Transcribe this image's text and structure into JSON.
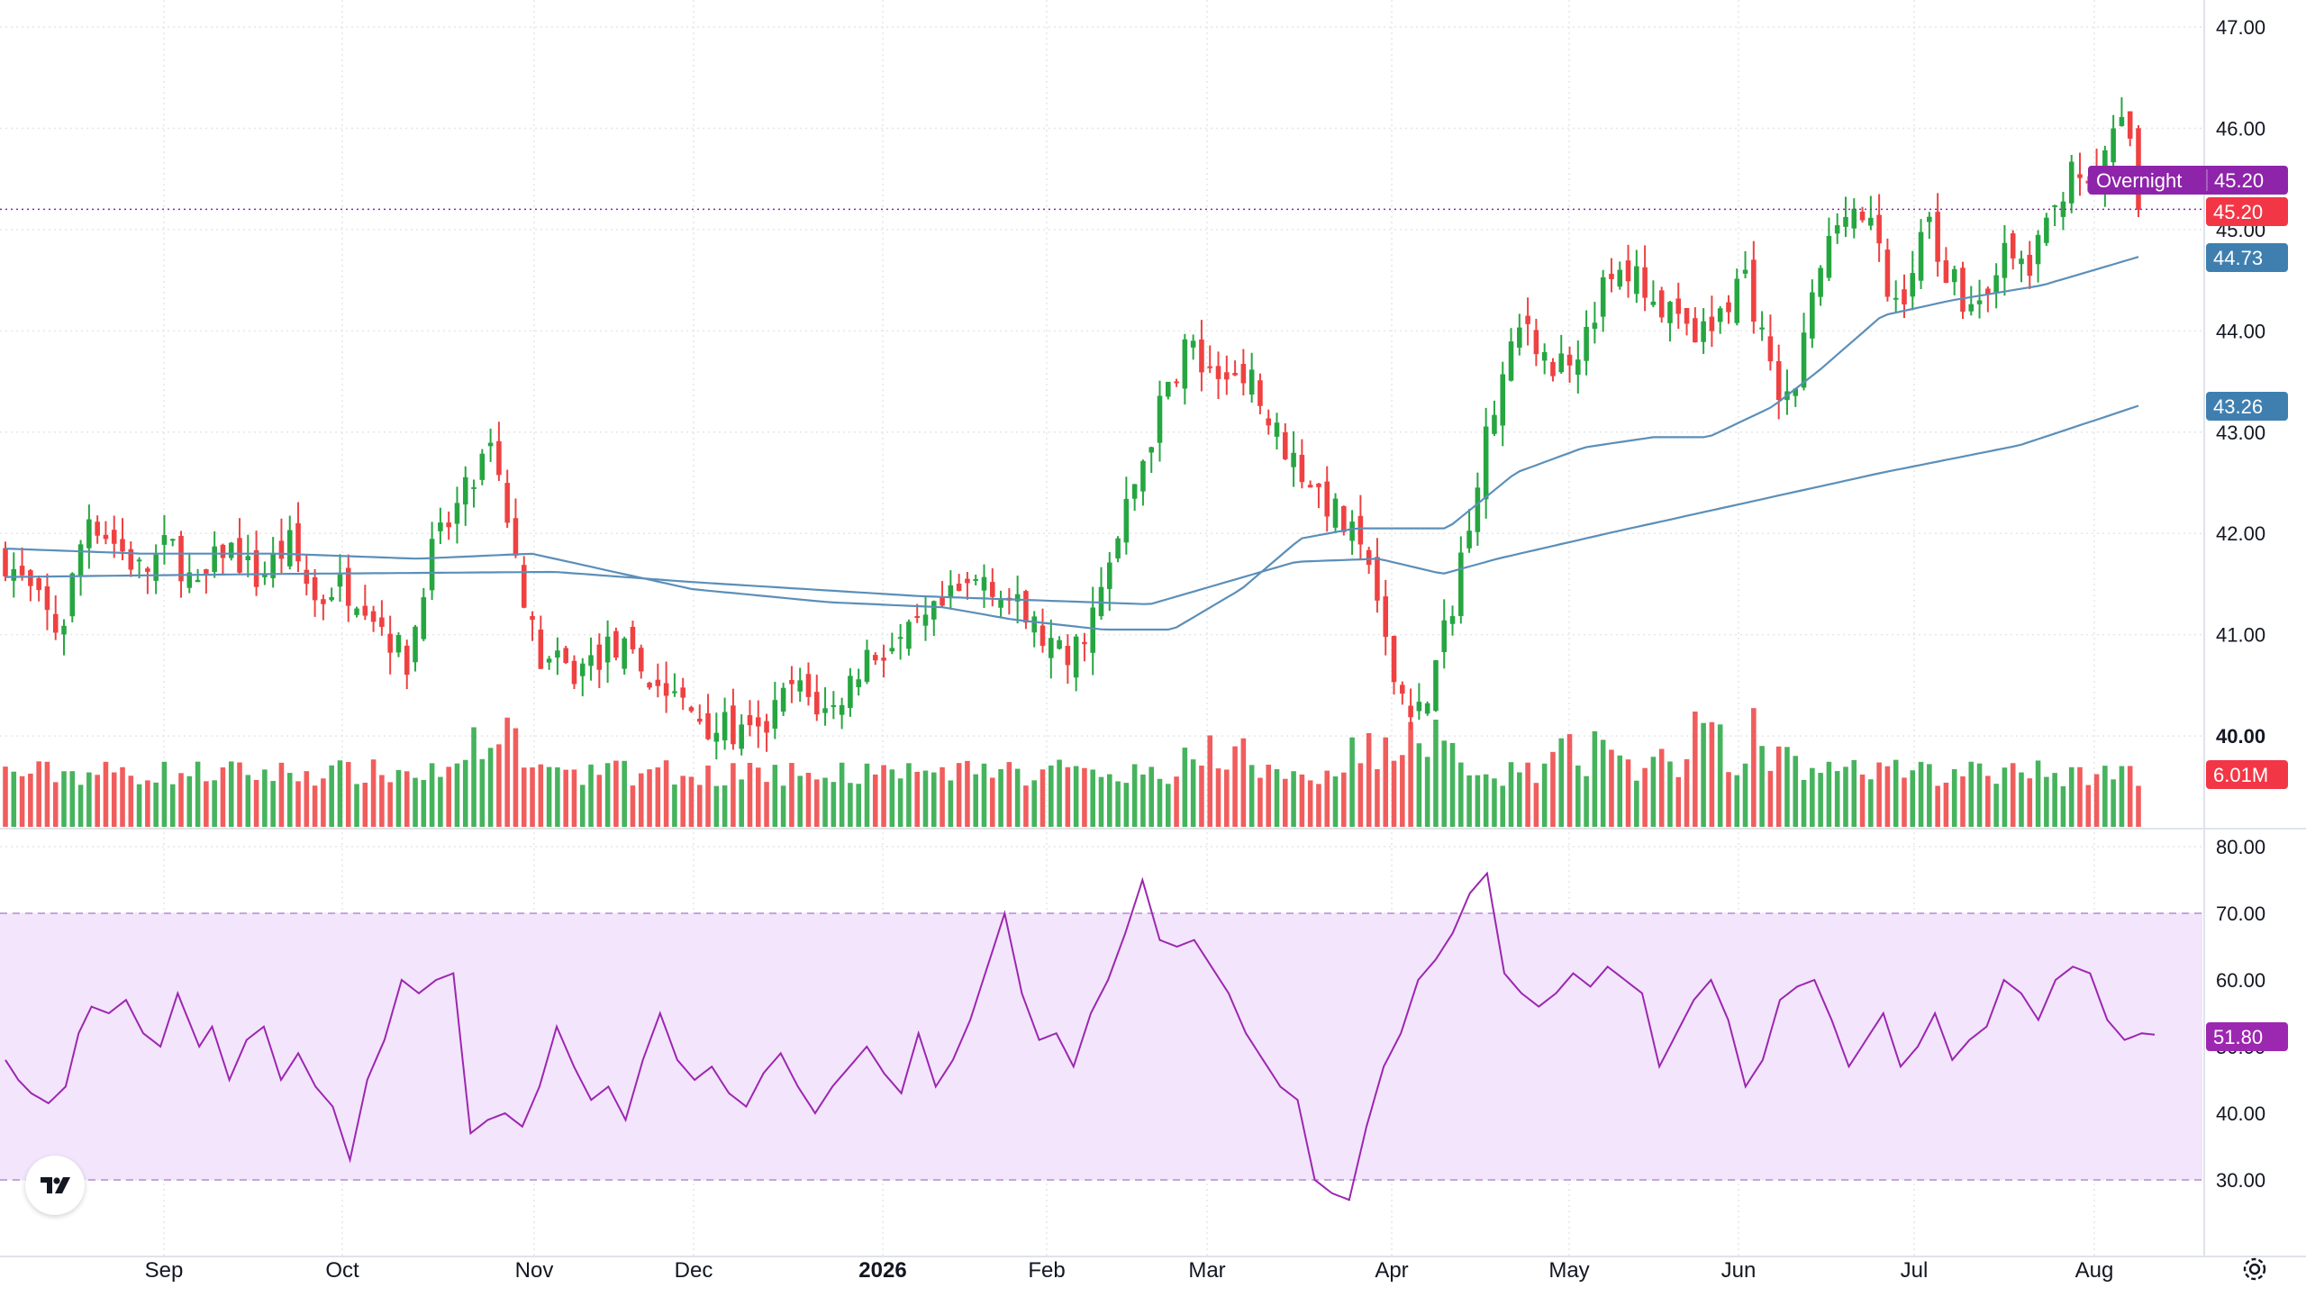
{
  "colors": {
    "up": "#26a641",
    "down": "#ef4141",
    "ma_line": "#5b8fb9",
    "rsi_line": "#9c27b0",
    "rsi_band": "#f3e5fc",
    "overnight_tag": "#8e24aa",
    "price_tag": "#f23645",
    "ma_tag": "#3f7fb0",
    "grid": "#e4e6ea"
  },
  "price_tags": {
    "overnight_label": "Overnight",
    "overnight_value": "45.20",
    "last_price": "45.20",
    "ma_short": "44.73",
    "ma_long": "43.26",
    "volume": "6.01M",
    "rsi": "51.80"
  },
  "icons": {
    "logo": "tradingview-logo-icon",
    "settings": "gear-icon"
  },
  "chart_data": [
    {
      "type": "candlestick",
      "ylim": [
        39.0,
        47.0
      ],
      "y_ticks": [
        "47.00",
        "46.00",
        "45.00",
        "44.00",
        "43.00",
        "42.00",
        "41.00",
        "40.00"
      ],
      "x_ticks": [
        "Sep",
        "Oct",
        "Nov",
        "Dec",
        "2026",
        "Feb",
        "Mar",
        "Apr",
        "May",
        "Jun",
        "Jul",
        "Aug"
      ],
      "num_bars": 256,
      "ohlc_anchor_closes": [
        [
          0,
          41.75
        ],
        [
          12,
          41.0
        ],
        [
          18,
          42.2
        ],
        [
          30,
          41.6
        ],
        [
          36,
          41.9
        ],
        [
          42,
          41.4
        ],
        [
          48,
          41.9
        ],
        [
          55,
          41.55
        ],
        [
          62,
          41.9
        ],
        [
          68,
          41.3
        ],
        [
          72,
          41.5
        ],
        [
          78,
          41.4
        ],
        [
          88,
          40.7
        ],
        [
          92,
          41.7
        ],
        [
          100,
          42.35
        ],
        [
          106,
          42.75
        ],
        [
          112,
          41.75
        ],
        [
          116,
          40.8
        ],
        [
          124,
          40.6
        ],
        [
          133,
          40.9
        ],
        [
          140,
          40.6
        ],
        [
          148,
          40.3
        ],
        [
          155,
          40.1
        ],
        [
          164,
          39.95
        ],
        [
          172,
          40.5
        ],
        [
          180,
          40.2
        ],
        [
          188,
          40.8
        ],
        [
          196,
          40.9
        ],
        [
          206,
          41.3
        ],
        [
          214,
          41.6
        ],
        [
          224,
          41.1
        ],
        [
          232,
          40.7
        ],
        [
          240,
          41.45
        ],
        [
          246,
          42.4
        ],
        [
          252,
          43.2
        ],
        [
          258,
          43.9
        ],
        [
          264,
          43.4
        ],
        [
          270,
          43.7
        ],
        [
          276,
          43.1
        ],
        [
          282,
          42.7
        ],
        [
          288,
          42.35
        ],
        [
          292,
          42.1
        ],
        [
          298,
          41.7
        ],
        [
          302,
          40.7
        ],
        [
          306,
          40.35
        ],
        [
          310,
          40.25
        ],
        [
          316,
          41.3
        ],
        [
          322,
          42.7
        ],
        [
          327,
          43.5
        ],
        [
          332,
          44.15
        ],
        [
          338,
          43.6
        ],
        [
          344,
          43.9
        ],
        [
          350,
          44.5
        ],
        [
          356,
          44.55
        ],
        [
          362,
          44.2
        ],
        [
          368,
          43.9
        ],
        [
          374,
          44.1
        ],
        [
          380,
          44.6
        ],
        [
          386,
          43.5
        ],
        [
          390,
          43.25
        ],
        [
          396,
          44.55
        ],
        [
          402,
          45.3
        ],
        [
          408,
          45.0
        ],
        [
          412,
          44.2
        ],
        [
          416,
          44.5
        ],
        [
          420,
          45.1
        ],
        [
          424,
          44.6
        ],
        [
          430,
          44.2
        ],
        [
          436,
          44.75
        ],
        [
          442,
          44.6
        ],
        [
          448,
          45.2
        ],
        [
          452,
          45.8
        ],
        [
          456,
          45.15
        ],
        [
          460,
          46.05
        ],
        [
          464,
          45.9
        ],
        [
          466,
          45.2
        ]
      ],
      "ma_short_anchors": [
        [
          0,
          41.85
        ],
        [
          30,
          41.8
        ],
        [
          60,
          41.8
        ],
        [
          90,
          41.75
        ],
        [
          115,
          41.8
        ],
        [
          150,
          41.45
        ],
        [
          180,
          41.32
        ],
        [
          205,
          41.27
        ],
        [
          220,
          41.15
        ],
        [
          240,
          41.05
        ],
        [
          255,
          41.05
        ],
        [
          270,
          41.45
        ],
        [
          283,
          41.95
        ],
        [
          295,
          42.05
        ],
        [
          305,
          42.05
        ],
        [
          315,
          42.05
        ],
        [
          330,
          42.6
        ],
        [
          345,
          42.85
        ],
        [
          360,
          42.95
        ],
        [
          372,
          42.95
        ],
        [
          386,
          43.25
        ],
        [
          396,
          43.6
        ],
        [
          410,
          44.15
        ],
        [
          425,
          44.3
        ],
        [
          445,
          44.45
        ],
        [
          460,
          44.65
        ],
        [
          466,
          44.73
        ]
      ],
      "ma_long_anchors": [
        [
          0,
          41.57
        ],
        [
          60,
          41.6
        ],
        [
          120,
          41.62
        ],
        [
          150,
          41.52
        ],
        [
          200,
          41.38
        ],
        [
          250,
          41.3
        ],
        [
          282,
          41.72
        ],
        [
          300,
          41.75
        ],
        [
          314,
          41.6
        ],
        [
          326,
          41.75
        ],
        [
          350,
          42.0
        ],
        [
          380,
          42.3
        ],
        [
          410,
          42.6
        ],
        [
          440,
          42.87
        ],
        [
          466,
          43.26
        ]
      ]
    },
    {
      "type": "bar",
      "name": "Volume",
      "last_value": "6.01M"
    },
    {
      "type": "line",
      "name": "RSI",
      "ylim": [
        25,
        82
      ],
      "y_ticks": [
        "80.00",
        "70.00",
        "60.00",
        "50.00",
        "40.00",
        "30.00"
      ],
      "band": [
        30,
        70
      ],
      "anchors": [
        [
          0,
          48
        ],
        [
          3,
          45
        ],
        [
          6,
          43
        ],
        [
          10,
          41.5
        ],
        [
          14,
          44
        ],
        [
          17,
          52
        ],
        [
          20,
          56
        ],
        [
          24,
          55
        ],
        [
          28,
          57
        ],
        [
          32,
          52
        ],
        [
          36,
          50
        ],
        [
          40,
          58
        ],
        [
          45,
          50
        ],
        [
          48,
          53
        ],
        [
          52,
          45
        ],
        [
          56,
          51
        ],
        [
          60,
          53
        ],
        [
          64,
          45
        ],
        [
          68,
          49
        ],
        [
          72,
          44
        ],
        [
          76,
          41
        ],
        [
          80,
          33
        ],
        [
          84,
          45
        ],
        [
          88,
          51
        ],
        [
          92,
          60
        ],
        [
          96,
          58
        ],
        [
          100,
          60
        ],
        [
          104,
          61
        ],
        [
          108,
          37
        ],
        [
          112,
          39
        ],
        [
          116,
          40
        ],
        [
          120,
          38
        ],
        [
          124,
          44
        ],
        [
          128,
          53
        ],
        [
          132,
          47
        ],
        [
          136,
          42
        ],
        [
          140,
          44
        ],
        [
          144,
          39
        ],
        [
          148,
          48
        ],
        [
          152,
          55
        ],
        [
          156,
          48
        ],
        [
          160,
          45
        ],
        [
          164,
          47
        ],
        [
          168,
          43
        ],
        [
          172,
          41
        ],
        [
          176,
          46
        ],
        [
          180,
          49
        ],
        [
          184,
          44
        ],
        [
          188,
          40
        ],
        [
          192,
          44
        ],
        [
          196,
          47
        ],
        [
          200,
          50
        ],
        [
          204,
          46
        ],
        [
          208,
          43
        ],
        [
          212,
          52
        ],
        [
          216,
          44
        ],
        [
          220,
          48
        ],
        [
          224,
          54
        ],
        [
          228,
          62
        ],
        [
          232,
          70
        ],
        [
          236,
          58
        ],
        [
          240,
          51
        ],
        [
          244,
          52
        ],
        [
          248,
          47
        ],
        [
          252,
          55
        ],
        [
          256,
          60
        ],
        [
          260,
          67
        ],
        [
          264,
          75
        ],
        [
          268,
          66
        ],
        [
          272,
          65
        ],
        [
          276,
          66
        ],
        [
          280,
          62
        ],
        [
          284,
          58
        ],
        [
          288,
          52
        ],
        [
          292,
          48
        ],
        [
          296,
          44
        ],
        [
          300,
          42
        ],
        [
          304,
          30
        ],
        [
          308,
          28
        ],
        [
          312,
          27
        ],
        [
          316,
          38
        ],
        [
          320,
          47
        ],
        [
          324,
          52
        ],
        [
          328,
          60
        ],
        [
          332,
          63
        ],
        [
          336,
          67
        ],
        [
          340,
          73
        ],
        [
          344,
          76
        ],
        [
          348,
          61
        ],
        [
          352,
          58
        ],
        [
          356,
          56
        ],
        [
          360,
          58
        ],
        [
          364,
          61
        ],
        [
          368,
          59
        ],
        [
          372,
          62
        ],
        [
          376,
          60
        ],
        [
          380,
          58
        ],
        [
          384,
          47
        ],
        [
          388,
          52
        ],
        [
          392,
          57
        ],
        [
          396,
          60
        ],
        [
          400,
          54
        ],
        [
          404,
          44
        ],
        [
          408,
          48
        ],
        [
          412,
          57
        ],
        [
          416,
          59
        ],
        [
          420,
          60
        ],
        [
          424,
          54
        ],
        [
          428,
          47
        ],
        [
          432,
          51
        ],
        [
          436,
          55
        ],
        [
          440,
          47
        ],
        [
          444,
          50
        ],
        [
          448,
          55
        ],
        [
          452,
          48
        ],
        [
          456,
          51
        ],
        [
          460,
          53
        ],
        [
          464,
          60
        ],
        [
          468,
          58
        ],
        [
          472,
          54
        ],
        [
          476,
          60
        ],
        [
          480,
          62
        ],
        [
          484,
          61
        ],
        [
          488,
          54
        ],
        [
          492,
          51
        ],
        [
          496,
          52
        ],
        [
          499,
          51.8
        ]
      ]
    }
  ]
}
